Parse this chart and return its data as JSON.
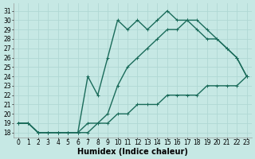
{
  "xlabel": "Humidex (Indice chaleur)",
  "background_color": "#c6e8e4",
  "grid_color": "#b0d8d4",
  "line_color": "#1a6b5a",
  "xlim": [
    -0.5,
    23.5
  ],
  "ylim": [
    17.5,
    31.8
  ],
  "xticks": [
    0,
    1,
    2,
    3,
    4,
    5,
    6,
    7,
    8,
    9,
    10,
    11,
    12,
    13,
    14,
    15,
    16,
    17,
    18,
    19,
    20,
    21,
    22,
    23
  ],
  "yticks": [
    18,
    19,
    20,
    21,
    22,
    23,
    24,
    25,
    26,
    27,
    28,
    29,
    30,
    31
  ],
  "line1_x": [
    0,
    1,
    2,
    3,
    4,
    5,
    6,
    7,
    8,
    9,
    10,
    11,
    12,
    13,
    14,
    15,
    16,
    17,
    18,
    19,
    20,
    21,
    22,
    23
  ],
  "line1_y": [
    19,
    19,
    18,
    18,
    18,
    18,
    18,
    18,
    19,
    19,
    20,
    20,
    21,
    21,
    21,
    22,
    22,
    22,
    22,
    23,
    23,
    23,
    23,
    24
  ],
  "line2_x": [
    0,
    1,
    2,
    3,
    4,
    5,
    6,
    7,
    8,
    9,
    10,
    11,
    12,
    13,
    14,
    15,
    16,
    17,
    18,
    19,
    20,
    21,
    22,
    23
  ],
  "line2_y": [
    19,
    19,
    18,
    18,
    18,
    18,
    18,
    24,
    22,
    26,
    30,
    29,
    30,
    29,
    30,
    31,
    30,
    30,
    30,
    29,
    28,
    27,
    26,
    24
  ],
  "line3_x": [
    0,
    1,
    2,
    3,
    4,
    5,
    6,
    7,
    8,
    9,
    10,
    11,
    12,
    13,
    14,
    15,
    16,
    17,
    18,
    19,
    20,
    21,
    22,
    23
  ],
  "line3_y": [
    19,
    19,
    18,
    18,
    18,
    18,
    18,
    19,
    19,
    20,
    23,
    25,
    26,
    27,
    28,
    29,
    29,
    30,
    29,
    28,
    28,
    27,
    26,
    24
  ],
  "marker_size": 2.5,
  "line_width": 1.0,
  "font_size": 5.5,
  "xlabel_fontsize": 7
}
